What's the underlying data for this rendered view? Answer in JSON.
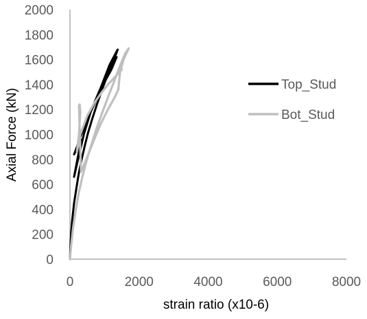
{
  "chart_data": {
    "type": "line",
    "title": "",
    "xlabel": "strain ratio (x10-6)",
    "ylabel": "Axial Force (kN)",
    "xlim": [
      0,
      8000
    ],
    "ylim": [
      0,
      2000
    ],
    "x_ticks": [
      0,
      2000,
      4000,
      6000,
      8000
    ],
    "y_ticks": [
      0,
      200,
      400,
      600,
      800,
      1000,
      1200,
      1400,
      1600,
      1800,
      2000
    ],
    "grid": false,
    "legend_position": "right",
    "series": [
      {
        "name": "Top_Stud",
        "color": "#000000",
        "points": [
          [
            0,
            0
          ],
          [
            20,
            150
          ],
          [
            60,
            300
          ],
          [
            120,
            450
          ],
          [
            180,
            560
          ],
          [
            250,
            680
          ],
          [
            330,
            790
          ],
          [
            420,
            900
          ],
          [
            520,
            1010
          ],
          [
            640,
            1120
          ],
          [
            780,
            1240
          ],
          [
            930,
            1360
          ],
          [
            1080,
            1470
          ],
          [
            1230,
            1580
          ],
          [
            1330,
            1640
          ],
          [
            1380,
            1680
          ],
          [
            1150,
            1560
          ],
          [
            900,
            1380
          ],
          [
            700,
            1250
          ],
          [
            520,
            1130
          ],
          [
            400,
            1050
          ],
          [
            300,
            980
          ],
          [
            200,
            900
          ],
          [
            120,
            840
          ],
          [
            350,
            960
          ],
          [
            300,
            920
          ],
          [
            200,
            780
          ],
          [
            120,
            660
          ],
          [
            200,
            760
          ],
          [
            400,
            1000
          ],
          [
            600,
            1180
          ],
          [
            800,
            1300
          ],
          [
            1000,
            1420
          ],
          [
            1200,
            1520
          ],
          [
            1350,
            1620
          ]
        ]
      },
      {
        "name": "Bot_Stud",
        "color": "#bfbfbf",
        "points": [
          [
            0,
            0
          ],
          [
            30,
            100
          ],
          [
            90,
            250
          ],
          [
            170,
            400
          ],
          [
            260,
            540
          ],
          [
            360,
            660
          ],
          [
            470,
            780
          ],
          [
            600,
            900
          ],
          [
            760,
            1040
          ],
          [
            940,
            1180
          ],
          [
            1130,
            1320
          ],
          [
            1300,
            1440
          ],
          [
            1450,
            1550
          ],
          [
            1600,
            1650
          ],
          [
            1700,
            1690
          ],
          [
            1550,
            1600
          ],
          [
            1450,
            1500
          ],
          [
            1400,
            1360
          ],
          [
            1300,
            1300
          ],
          [
            1100,
            1200
          ],
          [
            900,
            1090
          ],
          [
            700,
            960
          ],
          [
            500,
            820
          ],
          [
            320,
            700
          ],
          [
            260,
            1230
          ],
          [
            280,
            1240
          ],
          [
            300,
            1180
          ],
          [
            260,
            1000
          ],
          [
            200,
            860
          ],
          [
            300,
            1000
          ],
          [
            500,
            1150
          ],
          [
            700,
            1250
          ],
          [
            900,
            1330
          ],
          [
            1100,
            1400
          ],
          [
            1300,
            1460
          ],
          [
            1500,
            1520
          ]
        ]
      }
    ]
  }
}
